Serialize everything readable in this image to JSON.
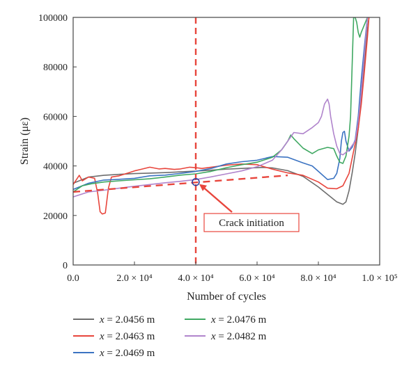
{
  "chart_data": {
    "type": "line",
    "title": "",
    "xlabel": "Number of cycles",
    "ylabel": "Strain (με)",
    "xlim": [
      0,
      100000
    ],
    "ylim": [
      0,
      100000
    ],
    "grid": false,
    "legend_position": "bottom",
    "x_ticks": [
      {
        "value": 0,
        "label": "0.0"
      },
      {
        "value": 20000,
        "label": "2.0 × 10⁴"
      },
      {
        "value": 40000,
        "label": "4.0 × 10⁴"
      },
      {
        "value": 60000,
        "label": "6.0 × 10⁴"
      },
      {
        "value": 80000,
        "label": "8.0 × 10⁴"
      },
      {
        "value": 100000,
        "label": "1.0 × 10⁵"
      }
    ],
    "y_ticks": [
      {
        "value": 0,
        "label": "0"
      },
      {
        "value": 20000,
        "label": "20000"
      },
      {
        "value": 40000,
        "label": "40000"
      },
      {
        "value": 60000,
        "label": "60000"
      },
      {
        "value": 80000,
        "label": "80000"
      },
      {
        "value": 100000,
        "label": "100000"
      }
    ],
    "series": [
      {
        "name": "x = 2.0456 m",
        "color": "#6d6d6d",
        "points": [
          [
            0,
            33000
          ],
          [
            5000,
            35500
          ],
          [
            10000,
            36200
          ],
          [
            15000,
            36600
          ],
          [
            20000,
            36900
          ],
          [
            25000,
            37100
          ],
          [
            30000,
            37300
          ],
          [
            35000,
            37600
          ],
          [
            38000,
            37800
          ],
          [
            40000,
            37900
          ],
          [
            45000,
            38300
          ],
          [
            50000,
            38700
          ],
          [
            55000,
            39000
          ],
          [
            60000,
            39300
          ],
          [
            62000,
            39400
          ],
          [
            65000,
            39200
          ],
          [
            70000,
            38100
          ],
          [
            75000,
            35800
          ],
          [
            80000,
            31500
          ],
          [
            84000,
            27500
          ],
          [
            86000,
            25500
          ],
          [
            88000,
            24500
          ],
          [
            89000,
            25500
          ],
          [
            90000,
            30000
          ],
          [
            91000,
            37000
          ],
          [
            92000,
            45000
          ],
          [
            93000,
            55000
          ],
          [
            94000,
            68000
          ],
          [
            95000,
            82000
          ],
          [
            96000,
            95000
          ],
          [
            96500,
            100000
          ]
        ]
      },
      {
        "name": "x = 2.0463 m",
        "color": "#e8453c",
        "points": [
          [
            0,
            32500
          ],
          [
            2000,
            36200
          ],
          [
            3000,
            34000
          ],
          [
            5000,
            35500
          ],
          [
            7000,
            35000
          ],
          [
            8000,
            29000
          ],
          [
            8800,
            21500
          ],
          [
            9500,
            20600
          ],
          [
            10500,
            21000
          ],
          [
            11500,
            31000
          ],
          [
            12500,
            35500
          ],
          [
            15000,
            36000
          ],
          [
            18000,
            37200
          ],
          [
            20000,
            38000
          ],
          [
            22000,
            38600
          ],
          [
            25000,
            39500
          ],
          [
            28000,
            38800
          ],
          [
            30000,
            39000
          ],
          [
            33000,
            38600
          ],
          [
            35000,
            38800
          ],
          [
            38000,
            39500
          ],
          [
            40000,
            39300
          ],
          [
            42000,
            39000
          ],
          [
            45000,
            39500
          ],
          [
            50000,
            40300
          ],
          [
            55000,
            40800
          ],
          [
            60000,
            40500
          ],
          [
            65000,
            38700
          ],
          [
            70000,
            37200
          ],
          [
            75000,
            36200
          ],
          [
            80000,
            33500
          ],
          [
            83000,
            31000
          ],
          [
            86000,
            30800
          ],
          [
            88000,
            32000
          ],
          [
            90000,
            37000
          ],
          [
            91000,
            43000
          ],
          [
            92000,
            49000
          ],
          [
            93000,
            55000
          ],
          [
            94000,
            65000
          ],
          [
            95000,
            78000
          ],
          [
            96000,
            92000
          ],
          [
            96500,
            100000
          ]
        ]
      },
      {
        "name": "x = 2.0469 m",
        "color": "#3b73c2",
        "points": [
          [
            0,
            30500
          ],
          [
            5000,
            33000
          ],
          [
            10000,
            34300
          ],
          [
            15000,
            34600
          ],
          [
            20000,
            35000
          ],
          [
            25000,
            36000
          ],
          [
            30000,
            36300
          ],
          [
            35000,
            37000
          ],
          [
            40000,
            37800
          ],
          [
            45000,
            39000
          ],
          [
            50000,
            40800
          ],
          [
            55000,
            41700
          ],
          [
            60000,
            42300
          ],
          [
            65000,
            43800
          ],
          [
            70000,
            43500
          ],
          [
            75000,
            41200
          ],
          [
            78000,
            40000
          ],
          [
            80000,
            37800
          ],
          [
            83000,
            34500
          ],
          [
            85000,
            35000
          ],
          [
            86000,
            37000
          ],
          [
            87000,
            43000
          ],
          [
            87500,
            50000
          ],
          [
            88000,
            53500
          ],
          [
            88500,
            54000
          ],
          [
            89000,
            50000
          ],
          [
            90000,
            46000
          ],
          [
            91000,
            47500
          ],
          [
            92000,
            50500
          ],
          [
            93000,
            60000
          ],
          [
            94000,
            75000
          ],
          [
            95000,
            88000
          ],
          [
            96000,
            100000
          ]
        ]
      },
      {
        "name": "x = 2.0476 m",
        "color": "#3fa862",
        "points": [
          [
            0,
            29500
          ],
          [
            3000,
            32000
          ],
          [
            6000,
            32800
          ],
          [
            10000,
            33500
          ],
          [
            15000,
            34000
          ],
          [
            20000,
            34400
          ],
          [
            25000,
            34800
          ],
          [
            30000,
            35500
          ],
          [
            35000,
            36300
          ],
          [
            40000,
            36800
          ],
          [
            45000,
            37800
          ],
          [
            50000,
            39300
          ],
          [
            55000,
            40500
          ],
          [
            60000,
            41500
          ],
          [
            65000,
            43500
          ],
          [
            68000,
            46500
          ],
          [
            70000,
            50000
          ],
          [
            71000,
            52500
          ],
          [
            72000,
            51000
          ],
          [
            75000,
            47200
          ],
          [
            78000,
            45000
          ],
          [
            80000,
            46500
          ],
          [
            83000,
            47500
          ],
          [
            85000,
            47000
          ],
          [
            86000,
            44000
          ],
          [
            87000,
            41500
          ],
          [
            88000,
            41000
          ],
          [
            89000,
            44000
          ],
          [
            90000,
            52000
          ],
          [
            90500,
            60000
          ],
          [
            91000,
            80000
          ],
          [
            91500,
            100000
          ],
          [
            92000,
            100000
          ],
          [
            92500,
            98000
          ],
          [
            93000,
            94000
          ],
          [
            93500,
            92000
          ],
          [
            94000,
            94000
          ],
          [
            95000,
            97000
          ],
          [
            96000,
            100000
          ]
        ]
      },
      {
        "name": "x = 2.0482 m",
        "color": "#b084cc",
        "points": [
          [
            0,
            27500
          ],
          [
            5000,
            29500
          ],
          [
            10000,
            30200
          ],
          [
            15000,
            31000
          ],
          [
            20000,
            31800
          ],
          [
            25000,
            32500
          ],
          [
            30000,
            33200
          ],
          [
            35000,
            33800
          ],
          [
            40000,
            34500
          ],
          [
            45000,
            35600
          ],
          [
            50000,
            36800
          ],
          [
            55000,
            38000
          ],
          [
            60000,
            39700
          ],
          [
            65000,
            42300
          ],
          [
            68000,
            46500
          ],
          [
            70000,
            50000
          ],
          [
            72000,
            53500
          ],
          [
            75000,
            53000
          ],
          [
            78000,
            55500
          ],
          [
            80000,
            57500
          ],
          [
            81000,
            60000
          ],
          [
            82000,
            65000
          ],
          [
            83000,
            67000
          ],
          [
            83500,
            65000
          ],
          [
            84000,
            60000
          ],
          [
            85000,
            53000
          ],
          [
            86000,
            48000
          ],
          [
            87000,
            45000
          ],
          [
            88000,
            44500
          ],
          [
            90000,
            46500
          ],
          [
            92000,
            50000
          ],
          [
            93000,
            58000
          ],
          [
            94000,
            70000
          ],
          [
            95000,
            85000
          ],
          [
            96000,
            100000
          ]
        ]
      }
    ],
    "reference_lines": [
      {
        "type": "vertical",
        "x": 40000,
        "color": "#e8453c",
        "style": "dashed"
      },
      {
        "type": "trend",
        "from": [
          0,
          29500
        ],
        "to": [
          70000,
          36200
        ],
        "color": "#e8453c",
        "style": "dashed"
      }
    ],
    "annotations": [
      {
        "text": "Crack initiation",
        "point": [
          40000,
          33500
        ],
        "color": "#e8453c"
      }
    ]
  }
}
